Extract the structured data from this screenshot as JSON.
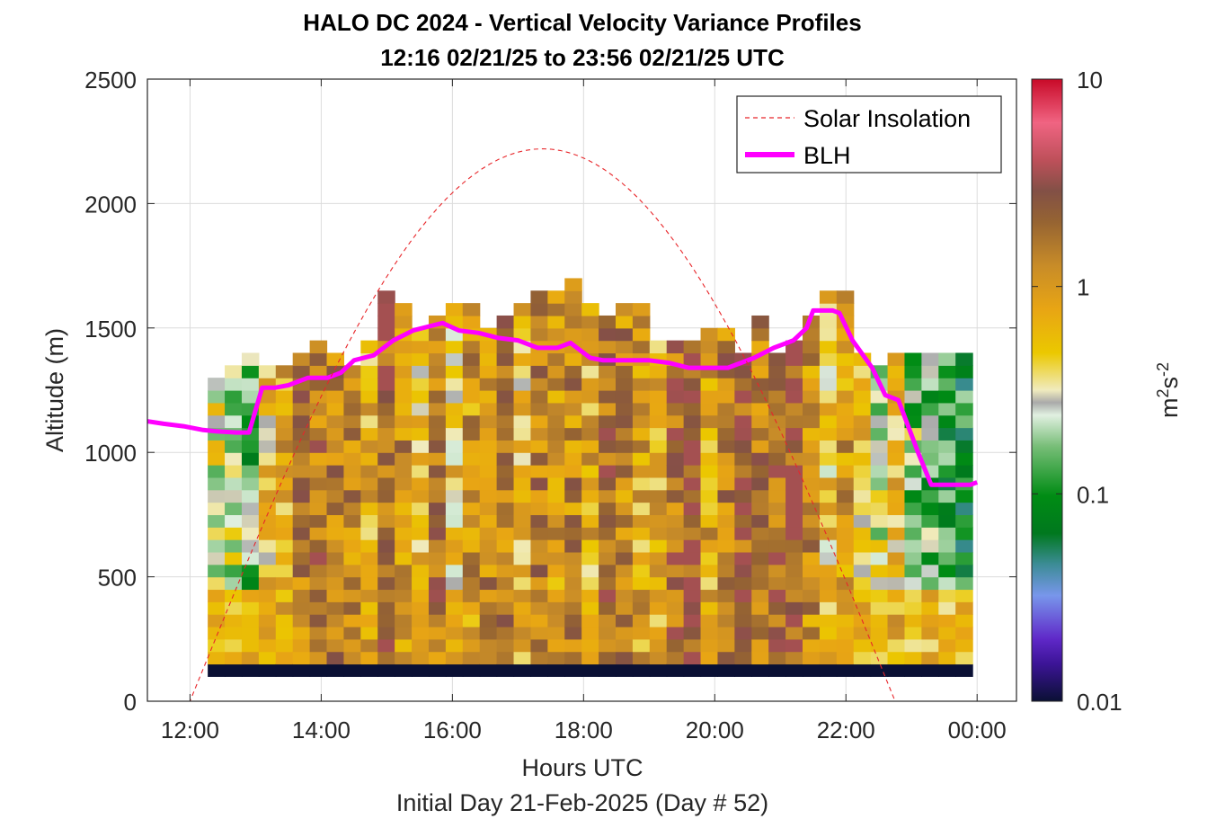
{
  "chart_data": {
    "type": "heatmap",
    "title": "HALO DC 2024 - Vertical Velocity Variance Profiles",
    "subtitle": "12:16 02/21/25 to 23:56 02/21/25  UTC",
    "xlabel": "Hours UTC",
    "xlabel2": "Initial Day 21-Feb-2025 (Day # 52)",
    "ylabel": "Altitude (m)",
    "xlim": [
      11.35,
      24.6
    ],
    "ylim": [
      0,
      2500
    ],
    "x_ticks": [
      12,
      14,
      16,
      18,
      20,
      22,
      24
    ],
    "x_tick_labels": [
      "12:00",
      "14:00",
      "16:00",
      "18:00",
      "20:00",
      "22:00",
      "00:00"
    ],
    "y_ticks": [
      0,
      500,
      1000,
      1500,
      2000,
      2500
    ],
    "y_tick_labels": [
      "0",
      "500",
      "1000",
      "1500",
      "2000",
      "2500"
    ],
    "grid": true,
    "colorbar": {
      "label": "m²s⁻²",
      "scale": "log",
      "range": [
        0.01,
        10
      ],
      "ticks": [
        0.01,
        0.1,
        1,
        10
      ],
      "tick_labels": [
        "0.01",
        "0.1",
        "1",
        "10"
      ]
    },
    "legend": {
      "position": "top-right",
      "entries": [
        {
          "name": "Solar Insolation",
          "color": "#e8262a",
          "style": "dashed"
        },
        {
          "name": "BLH",
          "color": "#ff00ff",
          "style": "solid"
        }
      ]
    },
    "heatmap": {
      "time_start": 12.27,
      "time_end": 23.93,
      "column_hours": 0.1667,
      "bin_height_m": 50,
      "lowest_bin_m": 100,
      "lowest_bin_value": 0.01,
      "column_top_altitudes_m": [
        1300,
        1350,
        1400,
        1350,
        1350,
        1400,
        1450,
        1400,
        1350,
        1450,
        1650,
        1600,
        1500,
        1550,
        1600,
        1600,
        1500,
        1550,
        1600,
        1650,
        1650,
        1700,
        1600,
        1550,
        1600,
        1600,
        1450,
        1450,
        1450,
        1500,
        1500,
        1400,
        1550,
        1400,
        1450,
        1550,
        1650,
        1650,
        1400,
        1350,
        1400,
        1400,
        1400,
        1400,
        1400
      ],
      "representative_column_values": [
        0.3,
        0.25,
        0.15,
        0.6,
        0.8,
        1.4,
        1.6,
        1.5,
        1.2,
        0.7,
        2.2,
        1.2,
        0.6,
        1.6,
        0.5,
        1.0,
        1.2,
        1.4,
        0.6,
        1.4,
        1.0,
        1.3,
        0.7,
        2.0,
        1.3,
        0.8,
        0.7,
        1.8,
        2.5,
        0.8,
        1.5,
        2.2,
        1.4,
        2.0,
        2.6,
        1.2,
        0.5,
        0.9,
        0.5,
        0.25,
        0.6,
        0.2,
        0.15,
        0.12,
        0.1
      ],
      "min_value": 0.01,
      "max_value": 3.5
    },
    "series": [
      {
        "name": "BLH",
        "x": [
          11.35,
          11.6,
          11.9,
          12.2,
          12.4,
          12.7,
          12.9,
          13.1,
          13.3,
          13.5,
          13.8,
          14.1,
          14.3,
          14.5,
          14.8,
          15.1,
          15.4,
          15.7,
          15.85,
          16.1,
          16.4,
          16.7,
          17.0,
          17.3,
          17.6,
          17.8,
          18.1,
          18.3,
          18.7,
          19.0,
          19.3,
          19.6,
          19.9,
          20.2,
          20.4,
          20.6,
          20.9,
          21.2,
          21.4,
          21.5,
          21.8,
          21.9,
          22.1,
          22.4,
          22.6,
          22.8,
          23.1,
          23.3,
          23.6,
          23.9,
          24.0
        ],
        "y": [
          1125,
          1115,
          1105,
          1090,
          1085,
          1080,
          1080,
          1260,
          1260,
          1270,
          1300,
          1300,
          1320,
          1370,
          1390,
          1450,
          1490,
          1510,
          1520,
          1490,
          1480,
          1460,
          1450,
          1420,
          1420,
          1440,
          1380,
          1370,
          1370,
          1370,
          1360,
          1340,
          1340,
          1340,
          1360,
          1380,
          1420,
          1450,
          1500,
          1570,
          1570,
          1560,
          1450,
          1340,
          1230,
          1210,
          1000,
          870,
          870,
          870,
          880
        ]
      },
      {
        "name": "Solar Insolation",
        "x": [
          12.0,
          17.35,
          22.75
        ],
        "y": [
          0,
          2220,
          0
        ]
      }
    ]
  }
}
